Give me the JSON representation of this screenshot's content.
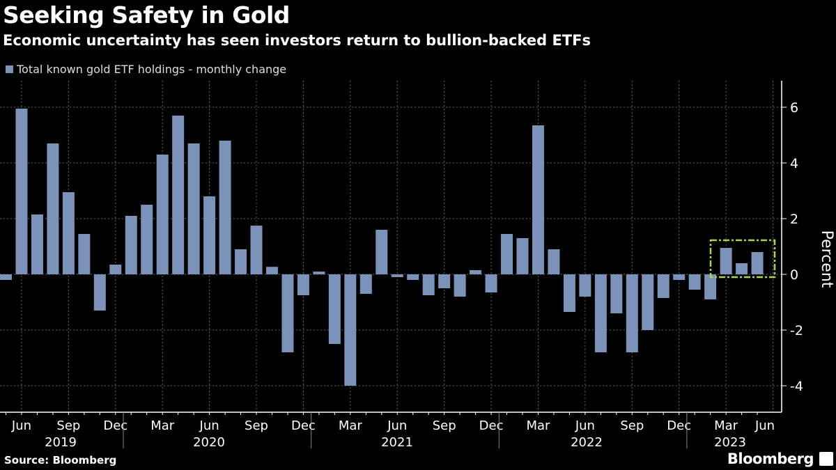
{
  "header": {
    "title": "Seeking Safety in Gold",
    "subtitle": "Economic uncertainty has seen investors return to bullion-backed ETFs"
  },
  "footer": {
    "source": "Source: Bloomberg",
    "brand": "Bloomberg"
  },
  "chart_data": {
    "type": "bar",
    "title": "Seeking Safety in Gold",
    "ylabel": "Percent",
    "ylim": [
      -5,
      7
    ],
    "yticks": [
      6,
      4,
      2,
      0,
      -2,
      -4
    ],
    "grid": true,
    "legend_placement": "top-left",
    "bar_color": "#7b93b8",
    "highlight_color": "#a8d84e",
    "highlight": "Mar 2023 – May 2023 (dashed box)",
    "series": [
      {
        "name": "Total known gold ETF holdings - monthly change",
        "values": [
          -0.2,
          5.95,
          2.15,
          4.7,
          2.95,
          1.45,
          -1.3,
          0.35,
          2.1,
          2.5,
          4.3,
          5.7,
          4.7,
          2.8,
          4.8,
          0.9,
          1.75,
          0.27,
          -2.8,
          -0.75,
          0.1,
          -2.5,
          -4.0,
          -0.7,
          1.6,
          -0.1,
          -0.2,
          -0.75,
          -0.5,
          -0.8,
          0.15,
          -0.65,
          1.45,
          1.3,
          5.35,
          0.9,
          -1.35,
          -0.8,
          -2.8,
          -1.4,
          -2.8,
          -2.0,
          -0.85,
          -0.2,
          -0.55,
          -0.9,
          0.95,
          0.4,
          0.8
        ]
      }
    ],
    "categories": [
      "May 2019",
      "Jun 2019",
      "Jul 2019",
      "Aug 2019",
      "Sep 2019",
      "Oct 2019",
      "Nov 2019",
      "Dec 2019",
      "Jan 2020",
      "Feb 2020",
      "Mar 2020",
      "Apr 2020",
      "May 2020",
      "Jun 2020",
      "Jul 2020",
      "Aug 2020",
      "Sep 2020",
      "Oct 2020",
      "Nov 2020",
      "Dec 2020",
      "Jan 2021",
      "Feb 2021",
      "Mar 2021",
      "Apr 2021",
      "May 2021",
      "Jun 2021",
      "Jul 2021",
      "Aug 2021",
      "Sep 2021",
      "Oct 2021",
      "Nov 2021",
      "Dec 2021",
      "Jan 2022",
      "Feb 2022",
      "Mar 2022",
      "Apr 2022",
      "May 2022",
      "Jun 2022",
      "Jul 2022",
      "Aug 2022",
      "Sep 2022",
      "Oct 2022",
      "Nov 2022",
      "Dec 2022",
      "Jan 2023",
      "Feb 2023",
      "Mar 2023",
      "Apr 2023",
      "May 2023"
    ],
    "xtick_months": [
      "Jun",
      "Sep",
      "Dec",
      "Mar",
      "Jun",
      "Sep",
      "Dec",
      "Mar",
      "Jun",
      "Sep",
      "Dec",
      "Mar",
      "Jun",
      "Sep",
      "Dec",
      "Mar",
      "Jun"
    ],
    "xtick_years": [
      "2019",
      "2020",
      "2021",
      "2022",
      "2023"
    ]
  }
}
